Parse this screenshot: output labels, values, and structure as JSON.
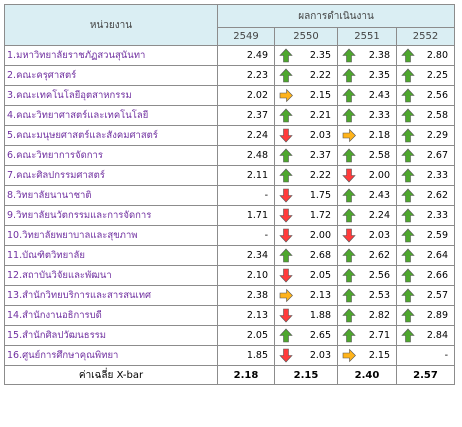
{
  "header": {
    "unit_label": "หน่วยงาน",
    "result_label": "ผลการดำเนินงาน",
    "years": [
      "2549",
      "2550",
      "2551",
      "2552"
    ]
  },
  "colors": {
    "up": "#4ea72e",
    "down": "#ff3b3b",
    "flat": "#ffb31a",
    "header_bg": "#daeef3",
    "name_text": "#7030a0"
  },
  "rows": [
    {
      "name": "1.มหาวิทยาลัยราชภัฏสวนสุนันทา",
      "values": [
        "2.49",
        "2.35",
        "2.38",
        "2.80"
      ],
      "trends": [
        "",
        "up",
        "up",
        "up"
      ]
    },
    {
      "name": "2.คณะครุศาสตร์",
      "values": [
        "2.23",
        "2.22",
        "2.35",
        "2.25"
      ],
      "trends": [
        "",
        "up",
        "up",
        "up"
      ]
    },
    {
      "name": "3.คณะเทคโนโลยีอุตสาหกรรม",
      "values": [
        "2.02",
        "2.15",
        "2.43",
        "2.56"
      ],
      "trends": [
        "",
        "right",
        "up",
        "up"
      ]
    },
    {
      "name": "4.คณะวิทยาศาสตร์และเทคโนโลยี",
      "values": [
        "2.37",
        "2.21",
        "2.33",
        "2.58"
      ],
      "trends": [
        "",
        "up",
        "up",
        "up"
      ]
    },
    {
      "name": "5.คณะมนุษยศาสตร์และสังคมศาสตร์",
      "values": [
        "2.24",
        "2.03",
        "2.18",
        "2.29"
      ],
      "trends": [
        "",
        "down",
        "right",
        "up"
      ]
    },
    {
      "name": "6.คณะวิทยาการจัดการ",
      "values": [
        "2.48",
        "2.37",
        "2.58",
        "2.67"
      ],
      "trends": [
        "",
        "up",
        "up",
        "up"
      ]
    },
    {
      "name": "7.คณะศิลปกรรมศาสตร์",
      "values": [
        "2.11",
        "2.22",
        "2.00",
        "2.33"
      ],
      "trends": [
        "",
        "up",
        "down",
        "up"
      ]
    },
    {
      "name": "8.วิทยาลัยนานาชาติ",
      "values": [
        "-",
        "1.75",
        "2.43",
        "2.62"
      ],
      "trends": [
        "",
        "down",
        "up",
        "up"
      ]
    },
    {
      "name": "9.วิทยาลัยนวัตกรรมและการจัดการ",
      "values": [
        "1.71",
        "1.72",
        "2.24",
        "2.33"
      ],
      "trends": [
        "",
        "down",
        "up",
        "up"
      ]
    },
    {
      "name": "10.วิทยาลัยพยาบาลและสุขภาพ",
      "values": [
        "-",
        "2.00",
        "2.03",
        "2.59"
      ],
      "trends": [
        "",
        "down",
        "down",
        "up"
      ]
    },
    {
      "name": "11.บัณฑิตวิทยาลัย",
      "values": [
        "2.34",
        "2.68",
        "2.62",
        "2.64"
      ],
      "trends": [
        "",
        "up",
        "up",
        "up"
      ]
    },
    {
      "name": "12.สถาบันวิจัยและพัฒนา",
      "values": [
        "2.10",
        "2.05",
        "2.56",
        "2.66"
      ],
      "trends": [
        "",
        "down",
        "up",
        "up"
      ]
    },
    {
      "name": "13.สำนักวิทยบริการและสารสนเทศ",
      "values": [
        "2.38",
        "2.13",
        "2.53",
        "2.57"
      ],
      "trends": [
        "",
        "right",
        "up",
        "up"
      ]
    },
    {
      "name": "14.สำนักงานอธิการบดี",
      "values": [
        "2.13",
        "1.88",
        "2.82",
        "2.89"
      ],
      "trends": [
        "",
        "down",
        "up",
        "up"
      ]
    },
    {
      "name": "15.สำนักศิลปวัฒนธรรม",
      "values": [
        "2.05",
        "2.65",
        "2.71",
        "2.84"
      ],
      "trends": [
        "",
        "up",
        "up",
        "up"
      ]
    },
    {
      "name": "16.ศูนย์การศึกษาคุณพิทยา",
      "values": [
        "1.85",
        "2.03",
        "2.15",
        "-"
      ],
      "trends": [
        "",
        "down",
        "right",
        ""
      ]
    }
  ],
  "footer": {
    "label": "ค่าเฉลี่ย   X-bar",
    "values": [
      "2.18",
      "2.15",
      "2.40",
      "2.57"
    ]
  }
}
